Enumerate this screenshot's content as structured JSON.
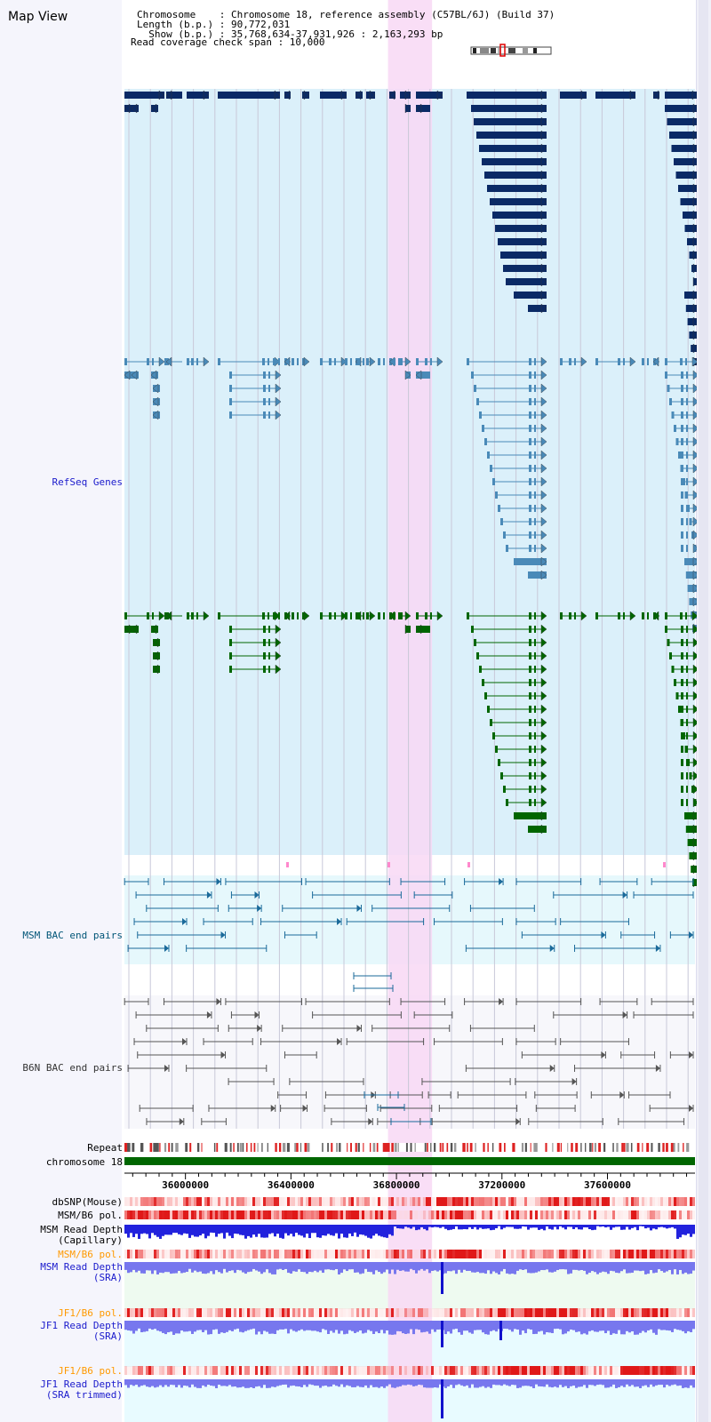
{
  "title": "Map View",
  "header": {
    "line1": "Chromosome    : Chromosome 18, reference assembly (C57BL/6J) (Build 37)",
    "line2": "Length (b.p.) : 90,772,031",
    "line3": "  Show (b.p.) : 35,768,634-37,931,926 : 2,163,293 bp",
    "line4": "Read coverage check span : 10,000"
  },
  "tracks": {
    "refseq": "RefSeq Genes",
    "msm_bac": "MSM BAC end pairs",
    "b6n_bac": "B6N BAC end pairs",
    "repeat": "Repeat",
    "chromosome": "chromosome 18",
    "dbsnp": "dbSNP(Mouse)",
    "msm_b6_pol": "MSM/B6 pol.",
    "msm_read_cap_1": "MSM Read Depth",
    "msm_read_cap_2": "(Capillary)",
    "msm_b6_pol_2": "MSM/B6 pol.",
    "msm_read_sra_1": "MSM Read Depth",
    "msm_read_sra_2": "(SRA)",
    "jf1_pol_1": "JF1/B6 pol.",
    "jf1_read_sra_1": "JF1 Read Depth",
    "jf1_read_sra_2": "(SRA)",
    "jf1_pol_2": "JF1/B6 pol.",
    "jf1_read_trim_1": "JF1 Read Depth",
    "jf1_read_trim_2": "(SRA trimmed)"
  },
  "axis": {
    "start": 35768634,
    "end": 37931926,
    "ticks": [
      "36000000",
      "36400000",
      "36800000",
      "37200000",
      "37600000"
    ],
    "tick_values": [
      36000000,
      36400000,
      36800000,
      37200000,
      37600000
    ]
  },
  "highlight_range": [
    36768000,
    36935000
  ],
  "colors": {
    "refseq_bg": "#dbf0fa",
    "gene_navy": "#0a2a66",
    "gene_steel": "#4a8ab8",
    "gene_green": "#006600",
    "msm_bg": "#e6f8fc",
    "msm_line": "#1a6a9a",
    "b6n_bg": "#f7f7fb",
    "b6n_line": "#555555",
    "highlight": "#f8d8f4",
    "chromosome": "#006600",
    "depth_blue": "#2222dd",
    "depth_light": "#7777ee",
    "pol_red": "#ee3333",
    "orange_label": "#ff9900",
    "blue_label": "#1a1acc",
    "teal_label": "#005577"
  }
}
